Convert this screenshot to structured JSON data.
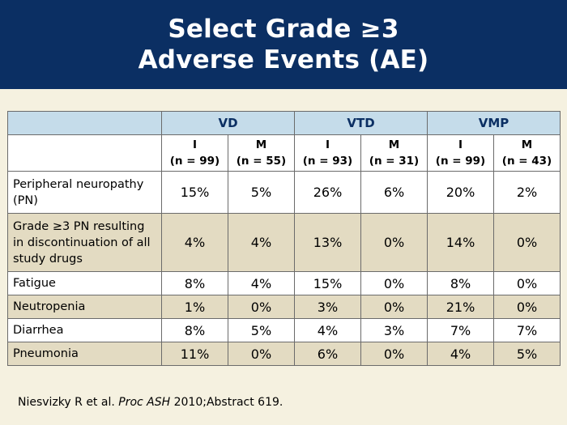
{
  "title": {
    "line1": "Select Grade ≥3",
    "line2": "Adverse Events (AE)"
  },
  "table": {
    "groups": [
      "VD",
      "VTD",
      "VMP"
    ],
    "subheaders": [
      {
        "arm": "I",
        "n": "(n = 99)"
      },
      {
        "arm": "M",
        "n": "(n = 55)"
      },
      {
        "arm": "I",
        "n": "(n = 93)"
      },
      {
        "arm": "M",
        "n": "(n = 31)"
      },
      {
        "arm": "I",
        "n": "(n = 99)"
      },
      {
        "arm": "M",
        "n": "(n = 43)"
      }
    ],
    "rows": [
      {
        "label": "Peripheral neuropathy (PN)",
        "values": [
          "15%",
          "5%",
          "26%",
          "6%",
          "20%",
          "2%"
        ]
      },
      {
        "label": "Grade ≥3 PN resulting in discontinuation of all study drugs",
        "values": [
          "4%",
          "4%",
          "13%",
          "0%",
          "14%",
          "0%"
        ]
      },
      {
        "label": "Fatigue",
        "values": [
          "8%",
          "4%",
          "15%",
          "0%",
          "8%",
          "0%"
        ]
      },
      {
        "label": "Neutropenia",
        "values": [
          "1%",
          "0%",
          "3%",
          "0%",
          "21%",
          "0%"
        ]
      },
      {
        "label": "Diarrhea",
        "values": [
          "8%",
          "5%",
          "4%",
          "3%",
          "7%",
          "7%"
        ]
      },
      {
        "label": "Pneumonia",
        "values": [
          "11%",
          "0%",
          "6%",
          "0%",
          "4%",
          "5%"
        ]
      }
    ]
  },
  "source": {
    "authors": "Niesvizky R et al. ",
    "journal": "Proc ASH",
    "rest": " 2010;Abstract 619."
  },
  "colors": {
    "header_bg": "#0b2f63",
    "slide_bg": "#f5f1e0",
    "table_header_bg": "#c5dcea",
    "row_alt_bg": "#e3dbc2"
  }
}
